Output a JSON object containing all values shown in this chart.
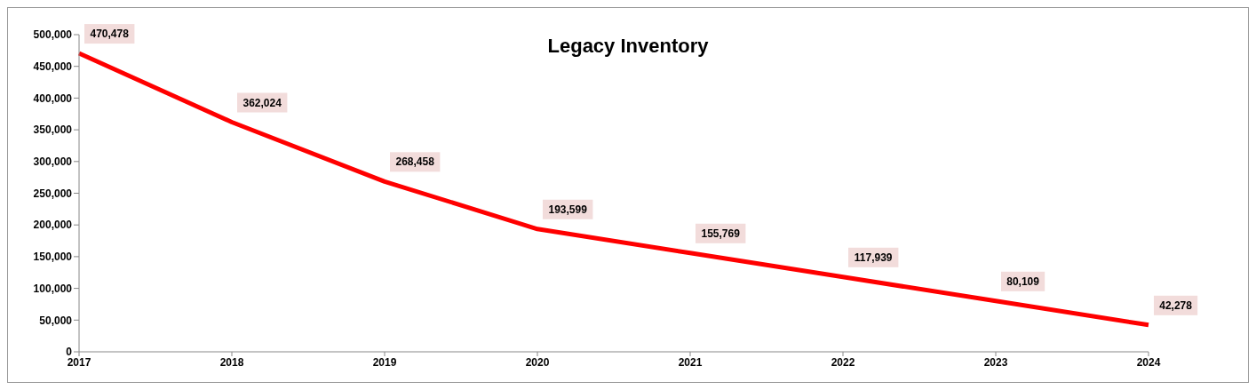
{
  "chart_data": {
    "type": "line",
    "title": "Legacy Inventory",
    "categories": [
      "2017",
      "2018",
      "2019",
      "2020",
      "2021",
      "2022",
      "2023",
      "2024"
    ],
    "series": [
      {
        "color": "#ff0000",
        "values": [
          470478,
          362024,
          268458,
          193599,
          155769,
          117939,
          80109,
          42278
        ],
        "value_labels": [
          "470,478",
          "362,024",
          "268,458",
          "193,599",
          "155,769",
          "117,939",
          "80,109",
          "42,278"
        ]
      }
    ],
    "ylim": [
      0,
      500000
    ],
    "yticks": [
      {
        "value": 0,
        "label": "0"
      },
      {
        "value": 50000,
        "label": "50,000"
      },
      {
        "value": 100000,
        "label": "100,000"
      },
      {
        "value": 150000,
        "label": "150,000"
      },
      {
        "value": 200000,
        "label": "200,000"
      },
      {
        "value": 250000,
        "label": "250,000"
      },
      {
        "value": 300000,
        "label": "300,000"
      },
      {
        "value": 350000,
        "label": "350,000"
      },
      {
        "value": 400000,
        "label": "400,000"
      },
      {
        "value": 450000,
        "label": "450,000"
      },
      {
        "value": 500000,
        "label": "500,000"
      }
    ],
    "grid": false,
    "legend": false,
    "line_style": "solid"
  }
}
